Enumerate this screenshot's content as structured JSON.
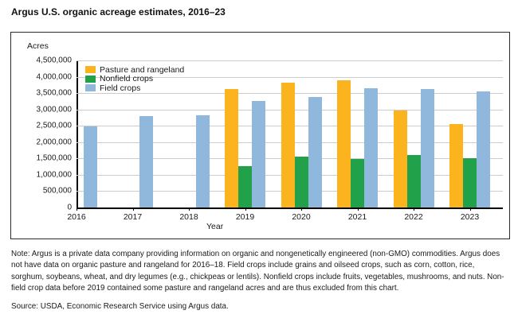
{
  "title": "Argus U.S. organic acreage estimates, 2016–23",
  "chart_data": {
    "type": "bar",
    "title": "Argus U.S. organic acreage estimates, 2016–23",
    "unit_label": "Acres",
    "xlabel": "Year",
    "categories": [
      "2016",
      "2017",
      "2018",
      "2019",
      "2020",
      "2021",
      "2022",
      "2023"
    ],
    "series": [
      {
        "name": "Pasture and rangeland",
        "color": "#FBB41E",
        "values": [
          null,
          null,
          null,
          3630000,
          3810000,
          3890000,
          2960000,
          2560000
        ]
      },
      {
        "name": "Nonfield crops",
        "color": "#21A14A",
        "values": [
          null,
          null,
          null,
          1270000,
          1560000,
          1480000,
          1600000,
          1500000
        ]
      },
      {
        "name": "Field crops",
        "color": "#8FB8DC",
        "values": [
          2480000,
          2790000,
          2830000,
          3250000,
          3370000,
          3650000,
          3630000,
          3560000
        ]
      }
    ],
    "ylim": [
      0,
      4500000
    ],
    "ytick_step": 500000,
    "ytick_labels": [
      "0",
      "500,000",
      "1,000,000",
      "1,500,000",
      "2,000,000",
      "2,500,000",
      "3,000,000",
      "3,500,000",
      "4,000,000",
      "4,500,000"
    ],
    "grid": true,
    "legend_position": "top-left-inside",
    "gridline_color": "#cccccc",
    "axis_color": "#000000"
  },
  "footer": {
    "note": "Note: Argus is a private data company providing information on organic and nongenetically engineered (non-GMO) commodities. Argus does not have data on organic pasture and rangeland for 2016–18. Field crops include grains and oilseed crops, such as corn, cotton, rice, sorghum, soybeans, wheat, and dry legumes (e.g., chickpeas or lentils). Nonfield crops include fruits, vegetables, mushrooms, and nuts. Non-field crop data before 2019 contained some pasture and rangeland acres and are thus excluded from this chart.",
    "source": "Source: USDA, Economic Research Service using Argus data."
  }
}
